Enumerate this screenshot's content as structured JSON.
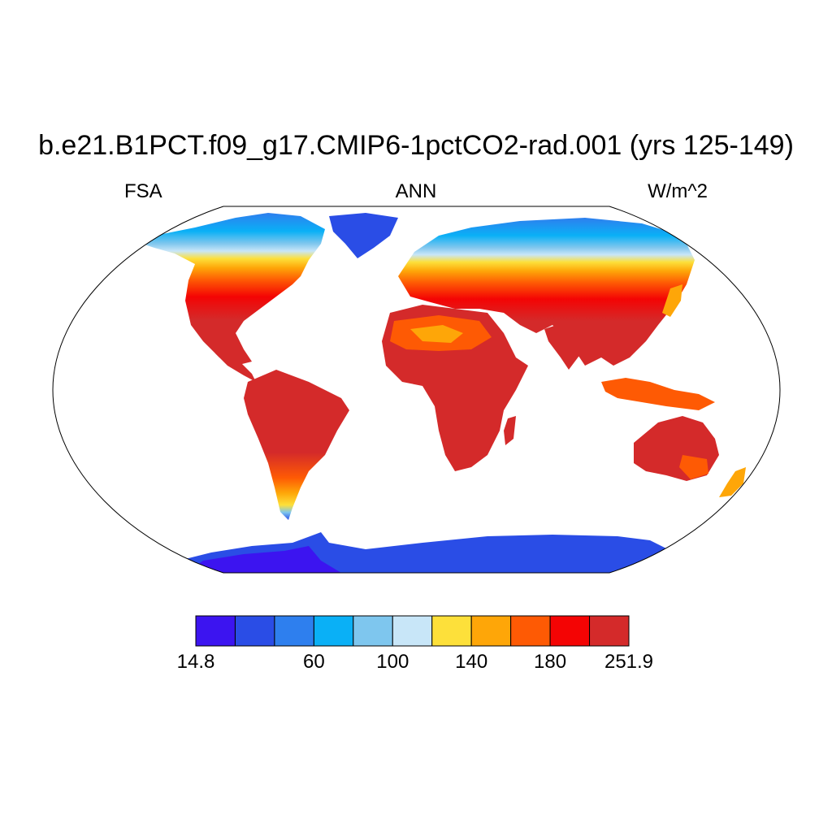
{
  "title": "b.e21.B1PCT.f09_g17.CMIP6-1pctCO2-rad.001 (yrs 125-149)",
  "left_string": "FSA",
  "center_string": "ANN",
  "right_string": "W/m^2",
  "colorbar": {
    "colors": [
      "#3c14f0",
      "#2a4de6",
      "#2e7fee",
      "#0ab0f6",
      "#7ec6ee",
      "#c8e6f8",
      "#fde03a",
      "#fea608",
      "#fe5a04",
      "#f40404",
      "#d42a2a"
    ],
    "labels": [
      {
        "text": "14.8",
        "edge": 0
      },
      {
        "text": "60",
        "edge": 3
      },
      {
        "text": "100",
        "edge": 5
      },
      {
        "text": "140",
        "edge": 7
      },
      {
        "text": "180",
        "edge": 9
      },
      {
        "text": "251.9",
        "edge": 11
      }
    ]
  }
}
